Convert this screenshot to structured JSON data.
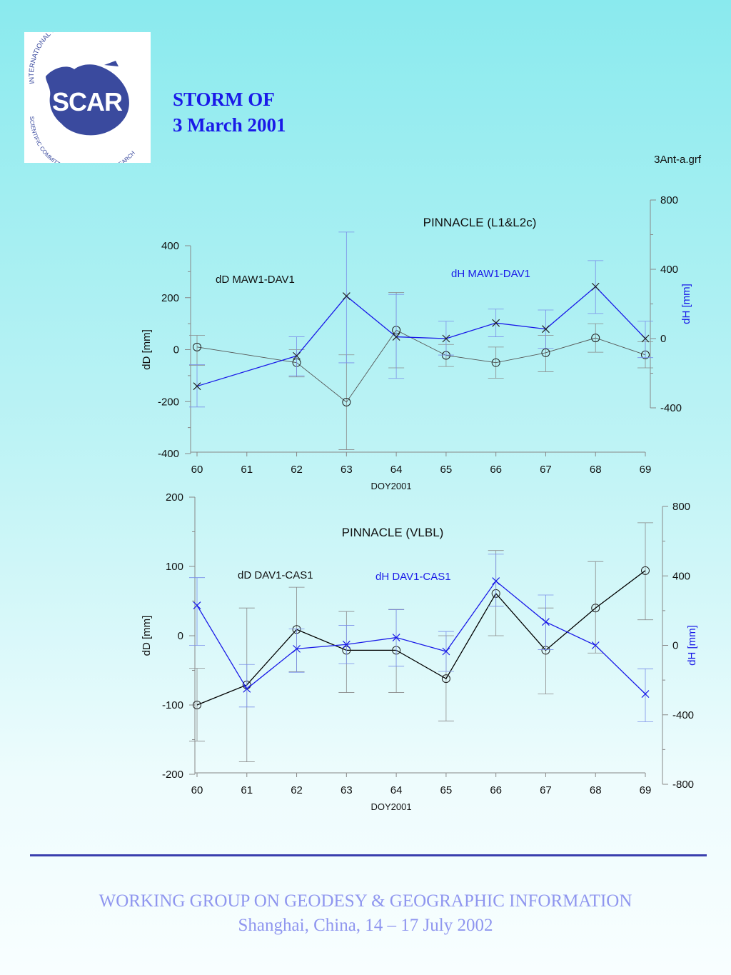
{
  "logo": {
    "center_text": "SCAR",
    "arc_top": "INTERNATIONAL COUNCIL FOR SCIENCE",
    "arc_bottom": "SCIENTIFIC COMMITTEE ON ANTARCTIC RESEARCH",
    "color": "#3a4a9e"
  },
  "header": {
    "title_line1": "STORM  OF",
    "title_line2": "3 March 2001",
    "filename": "3Ant-a.grf"
  },
  "colors": {
    "dD_series": "#555555",
    "dH_series": "#1a1ae8",
    "dD_series_2": "#000000",
    "axis": "#888888"
  },
  "chart_data": [
    {
      "type": "line",
      "title": "PINNACLE (L1&L2c)",
      "xlabel": "DOY2001",
      "ylabel": "dD [mm]",
      "y2label": "dH [mm]",
      "x": [
        60,
        61,
        62,
        63,
        64,
        65,
        66,
        67,
        68,
        69
      ],
      "xlim": [
        60,
        69
      ],
      "ylim": [
        -400,
        400
      ],
      "y2lim": [
        -400,
        800
      ],
      "yticks": [
        -400,
        -200,
        0,
        200,
        400
      ],
      "y2ticks": [
        -400,
        0,
        400,
        800
      ],
      "grid": false,
      "series": [
        {
          "name": "dD MAW1-DAV1",
          "axis": "left",
          "marker": "circle",
          "points": [
            {
              "x": 60,
              "y": 10,
              "lo": -60,
              "hi": 55
            },
            {
              "x": 62,
              "y": -50,
              "lo": -105,
              "hi": 0
            },
            {
              "x": 63,
              "y": -202,
              "lo": -385,
              "hi": -20
            },
            {
              "x": 64,
              "y": 75,
              "lo": -70,
              "hi": 220
            },
            {
              "x": 65,
              "y": -22,
              "lo": -65,
              "hi": 20
            },
            {
              "x": 66,
              "y": -50,
              "lo": -110,
              "hi": 10
            },
            {
              "x": 67,
              "y": -12,
              "lo": -85,
              "hi": 55
            },
            {
              "x": 68,
              "y": 45,
              "lo": -10,
              "hi": 100
            },
            {
              "x": 69,
              "y": -20,
              "lo": -70,
              "hi": 30
            }
          ]
        },
        {
          "name": "dH MAW1-DAV1",
          "axis": "right",
          "marker": "cross",
          "points": [
            {
              "x": 60,
              "y": -275,
              "lo": -395,
              "hi": -150
            },
            {
              "x": 62,
              "y": -100,
              "lo": -215,
              "hi": 10
            },
            {
              "x": 63,
              "y": 245,
              "lo": -140,
              "hi": 615
            },
            {
              "x": 64,
              "y": 10,
              "lo": -230,
              "hi": 255
            },
            {
              "x": 65,
              "y": 0,
              "lo": -95,
              "hi": 100
            },
            {
              "x": 66,
              "y": 90,
              "lo": 10,
              "hi": 170
            },
            {
              "x": 67,
              "y": 55,
              "lo": -55,
              "hi": 165
            },
            {
              "x": 68,
              "y": 300,
              "lo": 145,
              "hi": 450
            },
            {
              "x": 69,
              "y": 0,
              "lo": -110,
              "hi": 100
            }
          ]
        }
      ]
    },
    {
      "type": "line",
      "title": "PINNACLE (VLBL)",
      "xlabel": "DOY2001",
      "ylabel": "dD [mm]",
      "y2label": "dH [mm]",
      "x": [
        60,
        61,
        62,
        63,
        64,
        65,
        66,
        67,
        68,
        69
      ],
      "xlim": [
        60,
        69
      ],
      "ylim": [
        -200,
        200
      ],
      "y2lim": [
        -800,
        800
      ],
      "yticks": [
        -200,
        -100,
        0,
        100,
        200
      ],
      "y2ticks": [
        -800,
        -400,
        0,
        400,
        800
      ],
      "grid": false,
      "series": [
        {
          "name": "dD DAV1-CAS1",
          "axis": "left",
          "marker": "circle",
          "points": [
            {
              "x": 60,
              "y": -100,
              "lo": -152,
              "hi": -47
            },
            {
              "x": 61,
              "y": -71,
              "lo": -182,
              "hi": 40
            },
            {
              "x": 62,
              "y": 9,
              "lo": -52,
              "hi": 70
            },
            {
              "x": 63,
              "y": -21,
              "lo": -82,
              "hi": 35
            },
            {
              "x": 64,
              "y": -21,
              "lo": -82,
              "hi": 38
            },
            {
              "x": 65,
              "y": -62,
              "lo": -123,
              "hi": 0
            },
            {
              "x": 66,
              "y": 61,
              "lo": 0,
              "hi": 123
            },
            {
              "x": 67,
              "y": -21,
              "lo": -84,
              "hi": 40
            },
            {
              "x": 68,
              "y": 40,
              "lo": -25,
              "hi": 107
            },
            {
              "x": 69,
              "y": 94,
              "lo": 23,
              "hi": 163
            }
          ]
        },
        {
          "name": "dH DAV1-CAS1",
          "axis": "right",
          "marker": "cross",
          "points": [
            {
              "x": 60,
              "y": 230,
              "lo": 0,
              "hi": 390
            },
            {
              "x": 61,
              "y": -250,
              "lo": -355,
              "hi": -110
            },
            {
              "x": 62,
              "y": -20,
              "lo": -155,
              "hi": 95
            },
            {
              "x": 63,
              "y": 5,
              "lo": -105,
              "hi": 115
            },
            {
              "x": 64,
              "y": 45,
              "lo": -120,
              "hi": 205
            },
            {
              "x": 65,
              "y": -35,
              "lo": -150,
              "hi": 80
            },
            {
              "x": 66,
              "y": 370,
              "lo": 225,
              "hi": 525
            },
            {
              "x": 67,
              "y": 135,
              "lo": -25,
              "hi": 290
            },
            {
              "x": 68,
              "y": 0,
              "lo": 0,
              "hi": 0
            },
            {
              "x": 69,
              "y": -280,
              "lo": -440,
              "hi": -135
            }
          ]
        }
      ]
    }
  ],
  "footer": {
    "line1": "WORKING GROUP ON GEODESY & GEOGRAPHIC INFORMATION",
    "line2": "Shanghai, China, 14 – 17 July 2002"
  }
}
